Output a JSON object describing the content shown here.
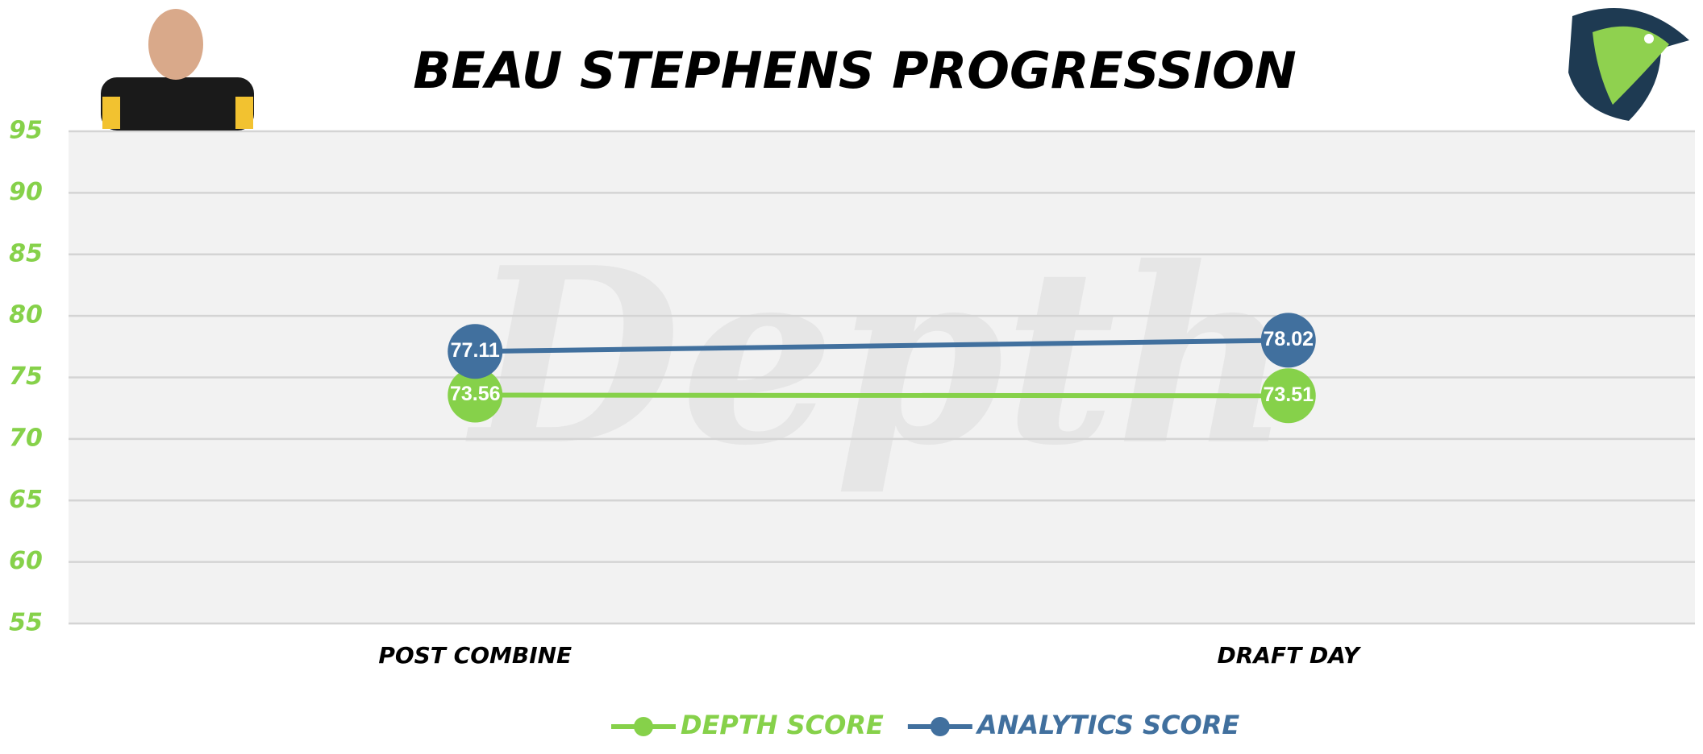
{
  "chart_data": {
    "type": "line",
    "title": "BEAU STEPHENS PROGRESSION",
    "watermark": "Depth",
    "categories": [
      "POST COMBINE",
      "DRAFT DAY"
    ],
    "series": [
      {
        "name": "DEPTH SCORE",
        "color": "#86d14a",
        "values": [
          73.56,
          73.51
        ]
      },
      {
        "name": "ANALYTICS SCORE",
        "color": "#41709e",
        "values": [
          77.11,
          78.02
        ]
      }
    ],
    "ylim": [
      55,
      95
    ],
    "yticks": [
      55,
      60,
      65,
      70,
      75,
      80,
      85,
      90,
      95
    ],
    "grid": true,
    "legend": "bottom"
  }
}
